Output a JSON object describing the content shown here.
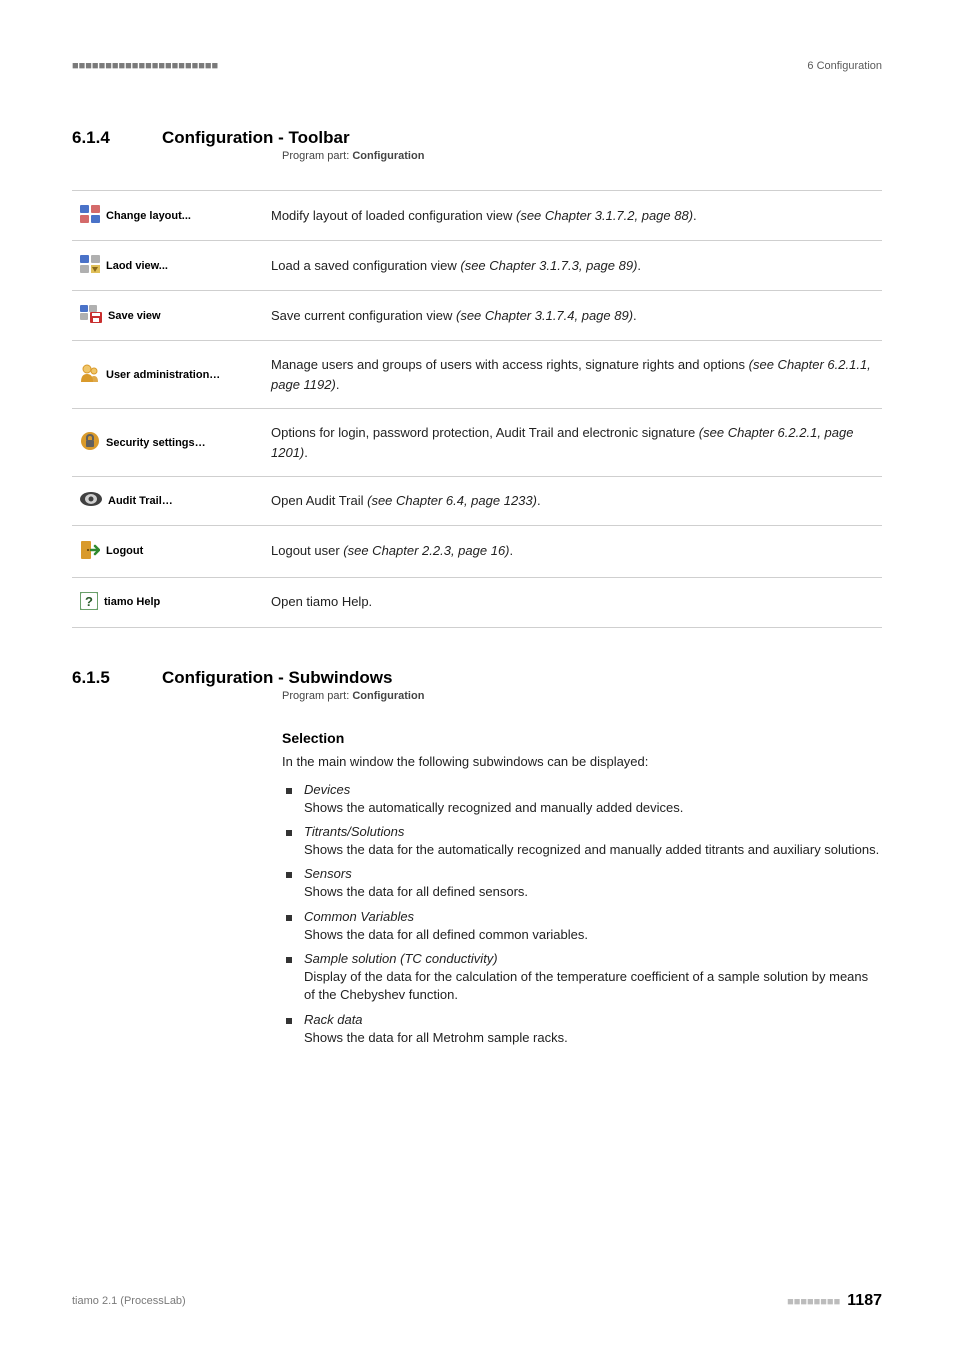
{
  "colors": {
    "text": "#000000",
    "muted": "#7a7a7a",
    "border": "#cfcfcf",
    "changeLayout1": "#4a72c8",
    "changeLayout2": "#d46a6a",
    "load1": "#4a72c8",
    "load2": "#e0c05a",
    "saveBody": "#4a72c8",
    "saveDisk": "#c92f2f",
    "userAdmin": "#d99a2b",
    "userHead": "#f0c66a",
    "security": "#d99a2b",
    "lock": "#606060",
    "auditCircle": "#404040",
    "auditEye": "#d0d0d0",
    "logoutDoor": "#d99a2b",
    "logoutArrow": "#2f8a2f",
    "helpBox": "#6aa06a",
    "helpQ": "#2a5a2a"
  },
  "header": {
    "dots": "■■■■■■■■■■■■■■■■■■■■■■",
    "chapter": "6 Configuration"
  },
  "section1": {
    "num": "6.1.4",
    "title": "Configuration - Toolbar",
    "programPartPrefix": "Program part: ",
    "programPartBold": "Configuration"
  },
  "toolbar": {
    "rows": [
      {
        "iconKey": "changeLayout",
        "label": "Change layout...",
        "desc": "Modify layout of loaded configuration view ",
        "ital": "(see Chapter 3.1.7.2, page 88)",
        "tail": "."
      },
      {
        "iconKey": "loadView",
        "label": "Laod view...",
        "desc": "Load a saved configuration view ",
        "ital": "(see Chapter 3.1.7.3, page 89)",
        "tail": "."
      },
      {
        "iconKey": "saveView",
        "label": "Save view",
        "desc": "Save current configuration view ",
        "ital": "(see Chapter 3.1.7.4, page 89)",
        "tail": "."
      },
      {
        "iconKey": "userAdmin",
        "label": "User administration…",
        "desc": "Manage users and groups of users with access rights, signature rights and options ",
        "ital": "(see Chapter 6.2.1.1, page 1192)",
        "tail": "."
      },
      {
        "iconKey": "security",
        "label": "Security settings…",
        "desc": "Options for login, password protection, Audit Trail and electronic signature ",
        "ital": "(see Chapter 6.2.2.1, page 1201)",
        "tail": "."
      },
      {
        "iconKey": "auditTrail",
        "label": "Audit Trail…",
        "desc": "Open Audit Trail ",
        "ital": "(see Chapter 6.4, page 1233)",
        "tail": "."
      },
      {
        "iconKey": "logout",
        "label": "Logout",
        "desc": "Logout user ",
        "ital": "(see Chapter 2.2.3, page 16)",
        "tail": "."
      },
      {
        "iconKey": "help",
        "label": "tiamo Help",
        "desc": "Open tiamo Help.",
        "ital": "",
        "tail": ""
      }
    ]
  },
  "section2": {
    "num": "6.1.5",
    "title": "Configuration - Subwindows",
    "programPartPrefix": "Program part: ",
    "programPartBold": "Configuration",
    "selectionHeading": "Selection",
    "lead": "In the main window the following subwindows can be displayed:",
    "items": [
      {
        "head": "Devices",
        "body": "Shows the automatically recognized and manually added devices."
      },
      {
        "head": "Titrants/Solutions",
        "body": "Shows the data for the automatically recognized and manually added titrants and auxiliary solutions."
      },
      {
        "head": "Sensors",
        "body": "Shows the data for all defined sensors."
      },
      {
        "head": "Common Variables",
        "body": "Shows the data for all defined common variables."
      },
      {
        "head": "Sample solution (TC conductivity)",
        "body": "Display of the data for the calculation of the temperature coefficient of a sample solution by means of the Chebyshev function."
      },
      {
        "head": "Rack data",
        "body": "Shows the data for all Metrohm sample racks."
      }
    ]
  },
  "footer": {
    "product": "tiamo 2.1 (ProcessLab)",
    "dots": "■■■■■■■■",
    "page": "1187"
  }
}
